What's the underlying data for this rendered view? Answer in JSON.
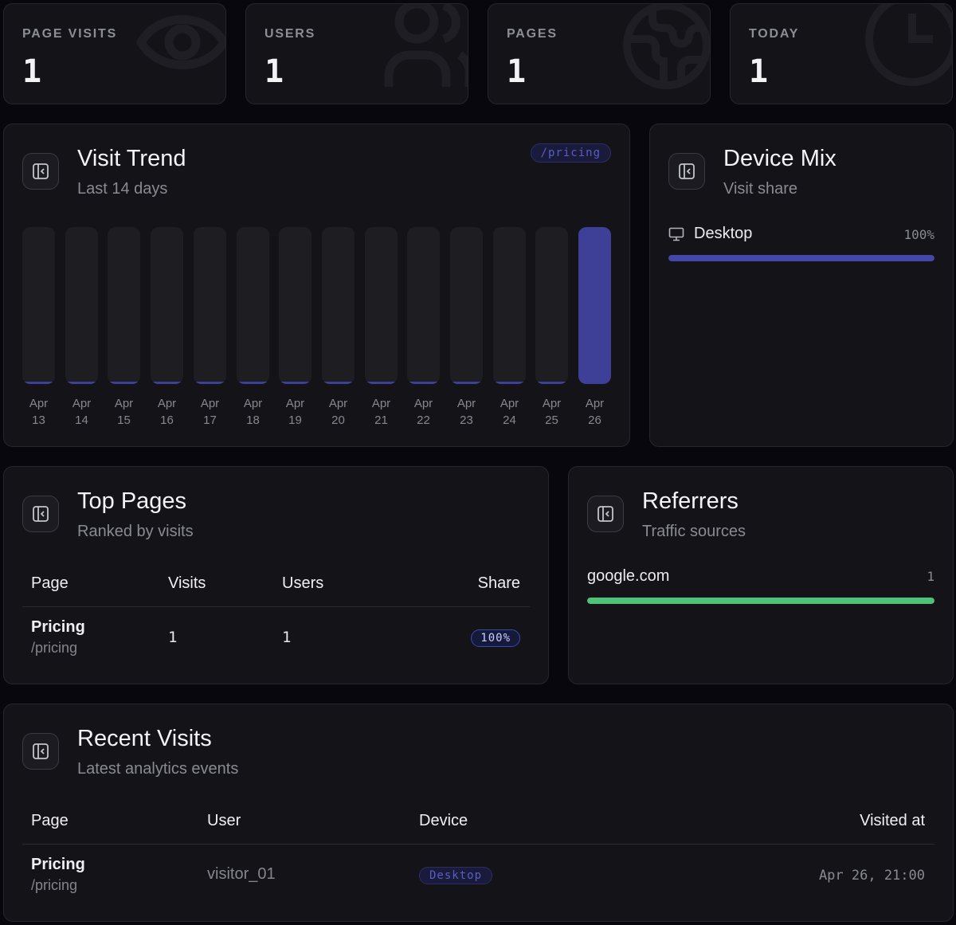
{
  "stats": [
    {
      "label": "PAGE VISITS",
      "value": "1",
      "icon": "eye-icon"
    },
    {
      "label": "USERS",
      "value": "1",
      "icon": "users-icon"
    },
    {
      "label": "PAGES",
      "value": "1",
      "icon": "globe-icon"
    },
    {
      "label": "TODAY",
      "value": "1",
      "icon": "clock-icon"
    }
  ],
  "trend": {
    "title": "Visit Trend",
    "subtitle": "Last 14 days",
    "route_badge": "/pricing",
    "accent": "#3e3f96",
    "days": [
      {
        "m": "Apr",
        "d": "13"
      },
      {
        "m": "Apr",
        "d": "14"
      },
      {
        "m": "Apr",
        "d": "15"
      },
      {
        "m": "Apr",
        "d": "16"
      },
      {
        "m": "Apr",
        "d": "17"
      },
      {
        "m": "Apr",
        "d": "18"
      },
      {
        "m": "Apr",
        "d": "19"
      },
      {
        "m": "Apr",
        "d": "20"
      },
      {
        "m": "Apr",
        "d": "21"
      },
      {
        "m": "Apr",
        "d": "22"
      },
      {
        "m": "Apr",
        "d": "23"
      },
      {
        "m": "Apr",
        "d": "24"
      },
      {
        "m": "Apr",
        "d": "25"
      },
      {
        "m": "Apr",
        "d": "26"
      }
    ],
    "values": [
      0,
      0,
      0,
      0,
      0,
      0,
      0,
      0,
      0,
      0,
      0,
      0,
      0,
      1
    ]
  },
  "devices": {
    "title": "Device Mix",
    "subtitle": "Visit share",
    "items": [
      {
        "label": "Desktop",
        "pct": "100%",
        "fraction": 1.0,
        "icon": "monitor-icon"
      }
    ],
    "color": "#4447a8"
  },
  "top_pages": {
    "title": "Top Pages",
    "subtitle": "Ranked by visits",
    "headers": {
      "page": "Page",
      "visits": "Visits",
      "users": "Users",
      "share": "Share"
    },
    "rows": [
      {
        "name": "Pricing",
        "path": "/pricing",
        "visits": "1",
        "users": "1",
        "share": "100%"
      }
    ]
  },
  "referrers": {
    "title": "Referrers",
    "subtitle": "Traffic sources",
    "items": [
      {
        "domain": "google.com",
        "count": "1",
        "fraction": 1.0
      }
    ],
    "color": "#4fc27a"
  },
  "recent": {
    "title": "Recent Visits",
    "subtitle": "Latest analytics events",
    "headers": {
      "page": "Page",
      "user": "User",
      "device": "Device",
      "visited_at": "Visited at"
    },
    "rows": [
      {
        "name": "Pricing",
        "path": "/pricing",
        "user": "visitor_01",
        "device": "Desktop",
        "visited_at": "Apr 26, 21:00"
      }
    ]
  }
}
